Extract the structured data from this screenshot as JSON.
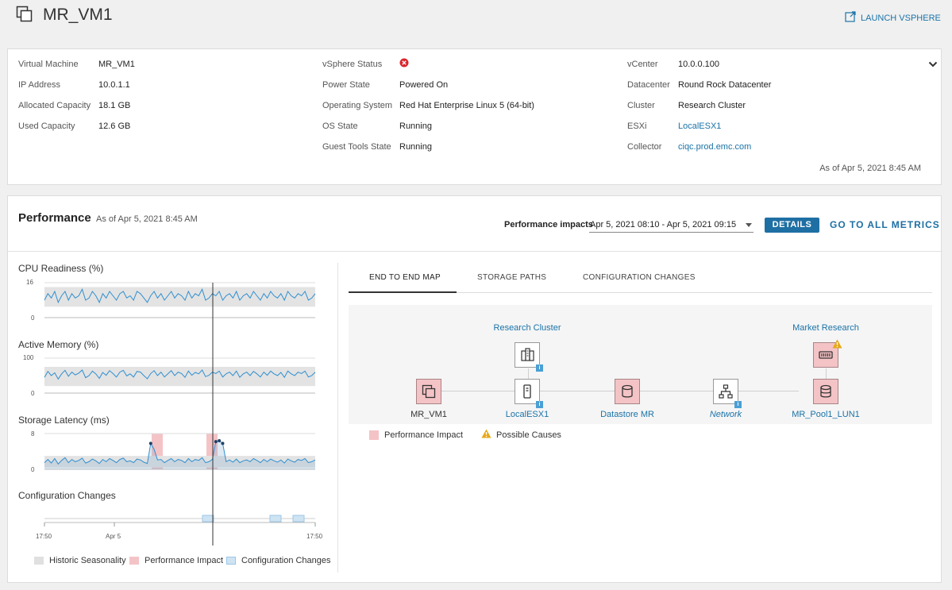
{
  "header": {
    "title": "MR_VM1",
    "launch_label": "LAUNCH VSPHERE"
  },
  "info": {
    "col1": [
      {
        "label": "Virtual Machine",
        "value": "MR_VM1"
      },
      {
        "label": "IP Address",
        "value": "10.0.1.1"
      },
      {
        "label": "Allocated Capacity",
        "value": "18.1 GB"
      },
      {
        "label": "Used Capacity",
        "value": "12.6 GB"
      }
    ],
    "col2": [
      {
        "label": "vSphere Status",
        "value": ""
      },
      {
        "label": "Power State",
        "value": "Powered On"
      },
      {
        "label": "Operating System",
        "value": "Red Hat Enterprise Linux 5 (64-bit)"
      },
      {
        "label": "OS State",
        "value": "Running"
      },
      {
        "label": "Guest Tools State",
        "value": "Running"
      }
    ],
    "col3": [
      {
        "label": "vCenter",
        "value": "10.0.0.100"
      },
      {
        "label": "Datacenter",
        "value": "Round Rock Datacenter"
      },
      {
        "label": "Cluster",
        "value": "Research Cluster"
      },
      {
        "label": "ESXi",
        "value": "LocalESX1"
      },
      {
        "label": "Collector",
        "value": "ciqc.prod.emc.com"
      }
    ],
    "as_of": "As of Apr 5, 2021 8:45 AM",
    "status_icon": "error-circle-icon",
    "status_color": "#d9262c"
  },
  "performance": {
    "title": "Performance",
    "as_of": "As of Apr 5, 2021 8:45 AM",
    "impacts_label": "Performance impacts",
    "range_value": "Apr 5, 2021 08:10 - Apr 5, 2021 09:15",
    "details_label": "DETAILS",
    "all_metrics_label": "GO TO ALL METRICS"
  },
  "tabs": [
    {
      "label": "END TO END MAP",
      "active": true
    },
    {
      "label": "STORAGE PATHS",
      "active": false
    },
    {
      "label": "CONFIGURATION CHANGES",
      "active": false
    }
  ],
  "map": {
    "group_labels": [
      "Research Cluster",
      "Market Research"
    ],
    "nodes": [
      {
        "label": "MR_VM1",
        "icon": "vm-icon",
        "impact": true
      },
      {
        "label": "LocalESX1",
        "icon": "server-icon",
        "impact": false
      },
      {
        "label": "Datastore MR",
        "icon": "datastore-icon",
        "impact": true
      },
      {
        "label": "Network",
        "icon": "network-icon",
        "impact": false
      },
      {
        "label": "MR_Pool1_LUN1",
        "icon": "lun-icon",
        "impact": true
      }
    ],
    "legend": [
      {
        "label": "Performance Impact",
        "color": "#f4c3c6"
      },
      {
        "label": "Possible Causes",
        "color": "#e6a817"
      }
    ]
  },
  "chart_legend": [
    {
      "label": "Historic Seasonality",
      "color": "#e0e0e0"
    },
    {
      "label": "Performance Impact",
      "color": "#f4c3c6"
    },
    {
      "label": "Configuration Changes",
      "color": "#cfe4f3"
    }
  ],
  "chart_data": [
    {
      "type": "line",
      "title": "CPU Readiness (%)",
      "ylim": [
        0,
        16
      ],
      "y_ticks": [
        "16",
        "0"
      ],
      "series": [
        {
          "name": "CPU Readiness",
          "values": [
            8,
            11,
            9,
            12,
            7,
            10,
            12,
            8,
            11,
            9,
            10,
            13,
            8,
            9,
            12,
            10,
            7,
            11,
            9,
            12,
            10,
            8,
            11,
            12,
            9,
            10,
            8,
            12,
            11,
            9,
            7,
            10,
            12,
            9,
            11,
            8,
            10,
            12,
            9,
            11,
            10,
            8,
            12,
            9,
            11,
            10,
            13,
            8,
            9,
            11,
            10,
            12,
            8,
            10,
            11,
            9,
            12,
            8,
            10,
            11,
            9,
            12,
            10,
            8,
            11,
            9,
            12,
            10,
            9,
            11,
            8,
            12,
            10,
            9,
            11,
            10,
            12,
            8,
            9,
            11
          ]
        }
      ],
      "band": [
        5,
        14
      ]
    },
    {
      "type": "line",
      "title": "Active Memory (%)",
      "ylim": [
        0,
        100
      ],
      "y_ticks": [
        "100",
        "0"
      ],
      "series": [
        {
          "name": "Active Memory",
          "values": [
            45,
            62,
            50,
            58,
            40,
            55,
            65,
            48,
            60,
            52,
            57,
            66,
            44,
            50,
            63,
            55,
            42,
            59,
            51,
            64,
            56,
            46,
            60,
            65,
            49,
            55,
            46,
            62,
            60,
            50,
            41,
            56,
            64,
            50,
            60,
            46,
            55,
            64,
            50,
            60,
            56,
            45,
            63,
            51,
            59,
            55,
            66,
            47,
            51,
            60,
            56,
            63,
            46,
            55,
            60,
            50,
            63,
            45,
            55,
            60,
            50,
            62,
            55,
            46,
            60,
            51,
            63,
            55,
            50,
            59,
            45,
            63,
            55,
            50,
            60,
            56,
            63,
            46,
            50,
            60
          ]
        }
      ],
      "band": [
        20,
        75
      ]
    },
    {
      "type": "line",
      "title": "Storage Latency (ms)",
      "ylim": [
        0,
        8
      ],
      "y_ticks": [
        "8",
        "0"
      ],
      "series": [
        {
          "name": "Storage Latency",
          "values": [
            1.5,
            2.2,
            1.4,
            2.4,
            1.2,
            2,
            2.6,
            1.5,
            2.2,
            1.7,
            2,
            2.5,
            1.4,
            1.7,
            2.3,
            1.9,
            1.3,
            2.2,
            1.7,
            2.4,
            2,
            1.5,
            2.2,
            2.5,
            1.7,
            1.9,
            1.5,
            2.3,
            2.1,
            1.6,
            1.3,
            5.8,
            4.5,
            2.1,
            2.2,
            1.5,
            2,
            2.4,
            1.7,
            2.2,
            2,
            1.5,
            2.4,
            1.7,
            2.2,
            2,
            2.6,
            1.5,
            1.7,
            2.2,
            6.2,
            6.4,
            5.8,
            1.7,
            2.1,
            1.6,
            2.3,
            1.5,
            1.9,
            2.1,
            1.7,
            2.4,
            2,
            1.5,
            2.2,
            1.7,
            2.3,
            1.9,
            1.6,
            2.1,
            1.4,
            2.3,
            1.9,
            1.6,
            2.2,
            2,
            2.4,
            1.5,
            1.7,
            2.1
          ]
        }
      ],
      "band": [
        0.4,
        3.0
      ]
    },
    {
      "type": "timeline",
      "title": "Configuration Changes",
      "x_ticks": [
        "17:50",
        "Apr 5",
        "17:50"
      ]
    }
  ]
}
